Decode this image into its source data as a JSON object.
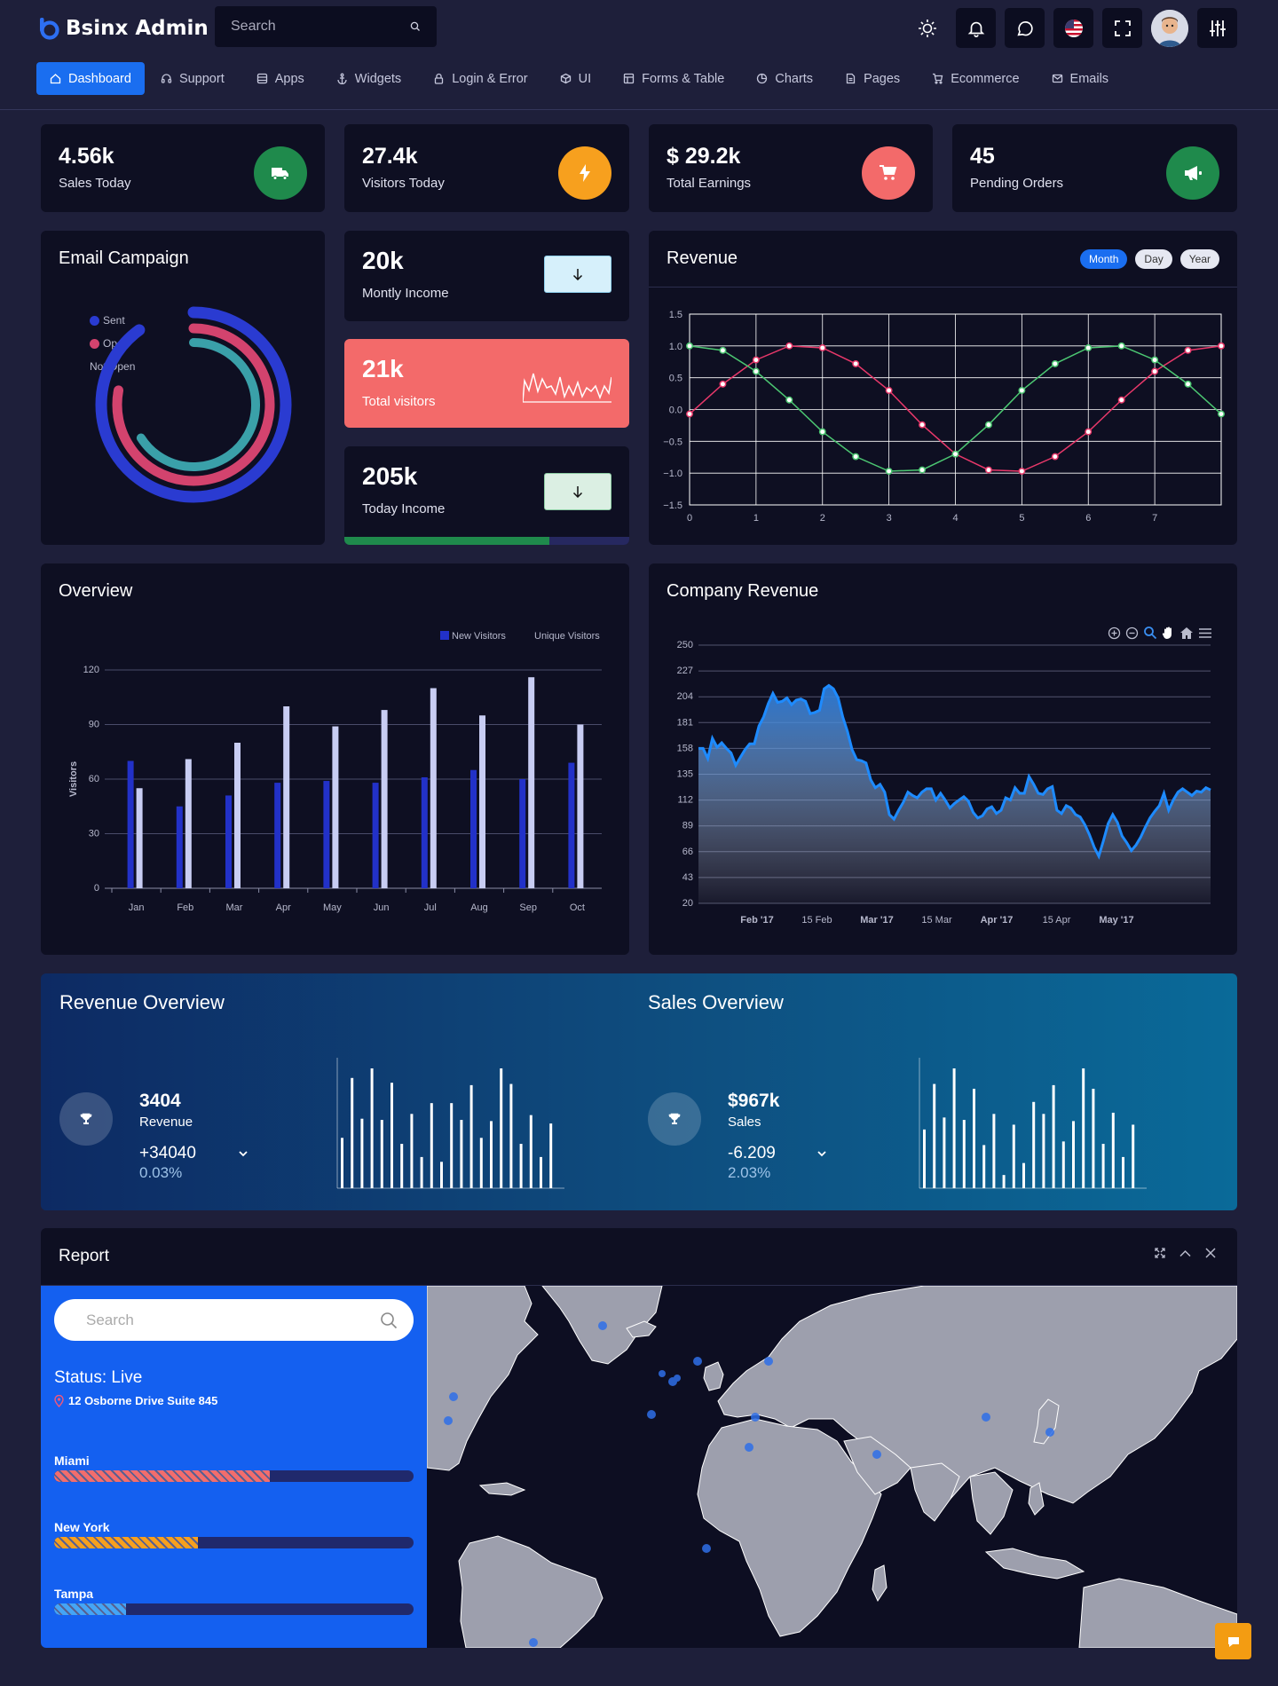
{
  "header": {
    "brand": "Bsinx Admin",
    "search_placeholder": "Search",
    "icons": [
      "sun-icon",
      "bell-icon",
      "chat-icon",
      "us-flag-icon",
      "fullscreen-icon",
      "avatar",
      "settings-sliders-icon"
    ]
  },
  "nav": {
    "items": [
      {
        "label": "Dashboard",
        "icon": "home-icon",
        "active": true
      },
      {
        "label": "Support",
        "icon": "headset-icon"
      },
      {
        "label": "Apps",
        "icon": "apps-icon"
      },
      {
        "label": "Widgets",
        "icon": "anchor-icon"
      },
      {
        "label": "Login & Error",
        "icon": "lock-icon"
      },
      {
        "label": "UI",
        "icon": "cube-icon"
      },
      {
        "label": "Forms & Table",
        "icon": "table-icon"
      },
      {
        "label": "Charts",
        "icon": "pie-icon"
      },
      {
        "label": "Pages",
        "icon": "file-icon"
      },
      {
        "label": "Ecommerce",
        "icon": "cart-icon"
      },
      {
        "label": "Emails",
        "icon": "mail-icon"
      }
    ]
  },
  "stats": [
    {
      "value": "4.56k",
      "label": "Sales Today",
      "icon": "truck-icon",
      "color": "#1f8a4c"
    },
    {
      "value": "27.4k",
      "label": "Visitors Today",
      "icon": "bolt-icon",
      "color": "#f7a01e"
    },
    {
      "value": "$ 29.2k",
      "label": "Total Earnings",
      "icon": "cart-icon",
      "color": "#f36a6a"
    },
    {
      "value": "45",
      "label": "Pending Orders",
      "icon": "megaphone-icon",
      "color": "#1f8a4c"
    }
  ],
  "email_campaign": {
    "title": "Email Campaign",
    "legend": [
      "Sent",
      "Open",
      "Not Open"
    ],
    "colors": [
      "#2a3bd1",
      "#d3436e",
      "#3aa0a9"
    ]
  },
  "income": {
    "monthly": {
      "value": "20k",
      "label": "Montly Income"
    },
    "visitors": {
      "value": "21k",
      "label": "Total visitors"
    },
    "today": {
      "value": "205k",
      "label": "Today Income",
      "progress": 0.72
    }
  },
  "revenue": {
    "title": "Revenue",
    "tabs": [
      "Month",
      "Day",
      "Year"
    ],
    "active_tab": "Month"
  },
  "overview": {
    "title": "Overview"
  },
  "company_revenue": {
    "title": "Company Revenue",
    "tools": [
      "zoom-in-icon",
      "zoom-out-icon",
      "search-icon",
      "pan-hand-icon",
      "home-icon",
      "menu-icon"
    ]
  },
  "revenue_overview": {
    "title": "Revenue Overview",
    "value": "3404",
    "label": "Revenue",
    "delta": "+34040",
    "pct": "0.03%",
    "bars": [
      0.42,
      0.92,
      0.58,
      1.0,
      0.57,
      0.88,
      0.37,
      0.62,
      0.26,
      0.71,
      0.22,
      0.71,
      0.57,
      0.86,
      0.42,
      0.56,
      1.0,
      0.87,
      0.37,
      0.61,
      0.26,
      0.54
    ]
  },
  "sales_overview": {
    "title": "Sales Overview",
    "value": "$967k",
    "label": "Sales",
    "delta": "-6.209",
    "pct": "2.03%",
    "bars": [
      0.49,
      0.87,
      0.59,
      1.0,
      0.57,
      0.83,
      0.36,
      0.62,
      0.11,
      0.53,
      0.21,
      0.72,
      0.62,
      0.86,
      0.39,
      0.56,
      1.0,
      0.83,
      0.37,
      0.63,
      0.26,
      0.53
    ]
  },
  "report": {
    "title": "Report",
    "search_placeholder": "Search",
    "status": "Status: Live",
    "address": "12 Osborne Drive Suite 845",
    "cities": [
      {
        "name": "Miami",
        "value": 0.6,
        "color": "#f26d6d"
      },
      {
        "name": "New York",
        "value": 0.4,
        "color": "#f7a01e"
      },
      {
        "name": "Tampa",
        "value": 0.2,
        "color": "#45a5f5"
      }
    ]
  },
  "chart_data": [
    {
      "type": "pie",
      "title": "Email Campaign",
      "categories": [
        "Sent",
        "Open",
        "Not Open"
      ],
      "values": [
        0.9,
        0.78,
        0.66
      ]
    },
    {
      "type": "line",
      "title": "Revenue",
      "x": [
        0,
        0.5,
        1,
        1.5,
        2,
        2.5,
        3,
        3.5,
        4,
        4.5,
        5,
        5.5,
        6,
        6.5,
        7,
        7.5,
        8
      ],
      "series": [
        {
          "values": [
            -0.07,
            0.4,
            0.78,
            1.0,
            0.97,
            0.72,
            0.3,
            -0.24,
            -0.7,
            -0.95,
            -0.97,
            -0.74,
            -0.35,
            0.15,
            0.6,
            0.93,
            1.0
          ]
        },
        {
          "values": [
            1.0,
            0.93,
            0.6,
            0.15,
            -0.35,
            -0.74,
            -0.97,
            -0.95,
            -0.7,
            -0.24,
            0.3,
            0.72,
            0.97,
            1.0,
            0.78,
            0.4,
            -0.07
          ]
        }
      ],
      "ylim": [
        -1.5,
        1.5
      ],
      "y_ticks": [
        "1.5",
        "1.0",
        "0.5",
        "0.0",
        "−0.5",
        "−1.0",
        "−1.5"
      ],
      "x_ticks": [
        "0",
        "1",
        "2",
        "3",
        "4",
        "5",
        "6",
        "7"
      ],
      "colors": [
        "#e8386a",
        "#4cc772"
      ]
    },
    {
      "type": "bar",
      "title": "Overview",
      "categories": [
        "Jan",
        "Feb",
        "Mar",
        "Apr",
        "May",
        "Jun",
        "Jul",
        "Aug",
        "Sep",
        "Oct"
      ],
      "series": [
        {
          "name": "New Visitors",
          "values": [
            70,
            45,
            51,
            58,
            59,
            58,
            61,
            65,
            60,
            69
          ],
          "color": "#2231c8"
        },
        {
          "name": "Unique Visitors",
          "values": [
            55,
            71,
            80,
            100,
            89,
            98,
            110,
            95,
            116,
            90
          ],
          "color": "#c8cdf3"
        }
      ],
      "ylabel": "Visitors",
      "ylim": [
        0,
        120
      ],
      "y_ticks": [
        "0",
        "30",
        "60",
        "90",
        "120"
      ]
    },
    {
      "type": "area",
      "title": "Company Revenue",
      "x_ticks": [
        "Feb '17",
        "15 Feb",
        "Mar '17",
        "15 Mar",
        "Apr '17",
        "15 Apr",
        "May '17"
      ],
      "y_ticks": [
        "250",
        "227",
        "204",
        "181",
        "158",
        "135",
        "112",
        "89",
        "66",
        "43",
        "20"
      ],
      "ylim": [
        20,
        250
      ],
      "values": [
        158,
        158,
        149,
        167,
        159,
        163,
        158,
        154,
        143,
        150,
        157,
        162,
        162,
        178,
        186,
        198,
        207,
        199,
        200,
        203,
        197,
        201,
        202,
        200,
        189,
        190,
        192,
        211,
        214,
        211,
        203,
        186,
        173,
        157,
        148,
        147,
        145,
        130,
        123,
        126,
        119,
        99,
        95,
        103,
        110,
        119,
        116,
        114,
        119,
        122,
        122,
        112,
        118,
        112,
        105,
        109,
        112,
        115,
        111,
        101,
        96,
        98,
        104,
        106,
        100,
        103,
        114,
        112,
        123,
        118,
        118,
        133,
        126,
        118,
        117,
        122,
        124,
        103,
        100,
        107,
        105,
        99,
        97,
        90,
        81,
        70,
        62,
        76,
        91,
        99,
        92,
        80,
        74,
        67,
        72,
        79,
        88,
        96,
        102,
        107,
        118,
        103,
        112,
        119,
        122,
        119,
        116,
        120,
        119,
        123,
        121
      ]
    }
  ]
}
